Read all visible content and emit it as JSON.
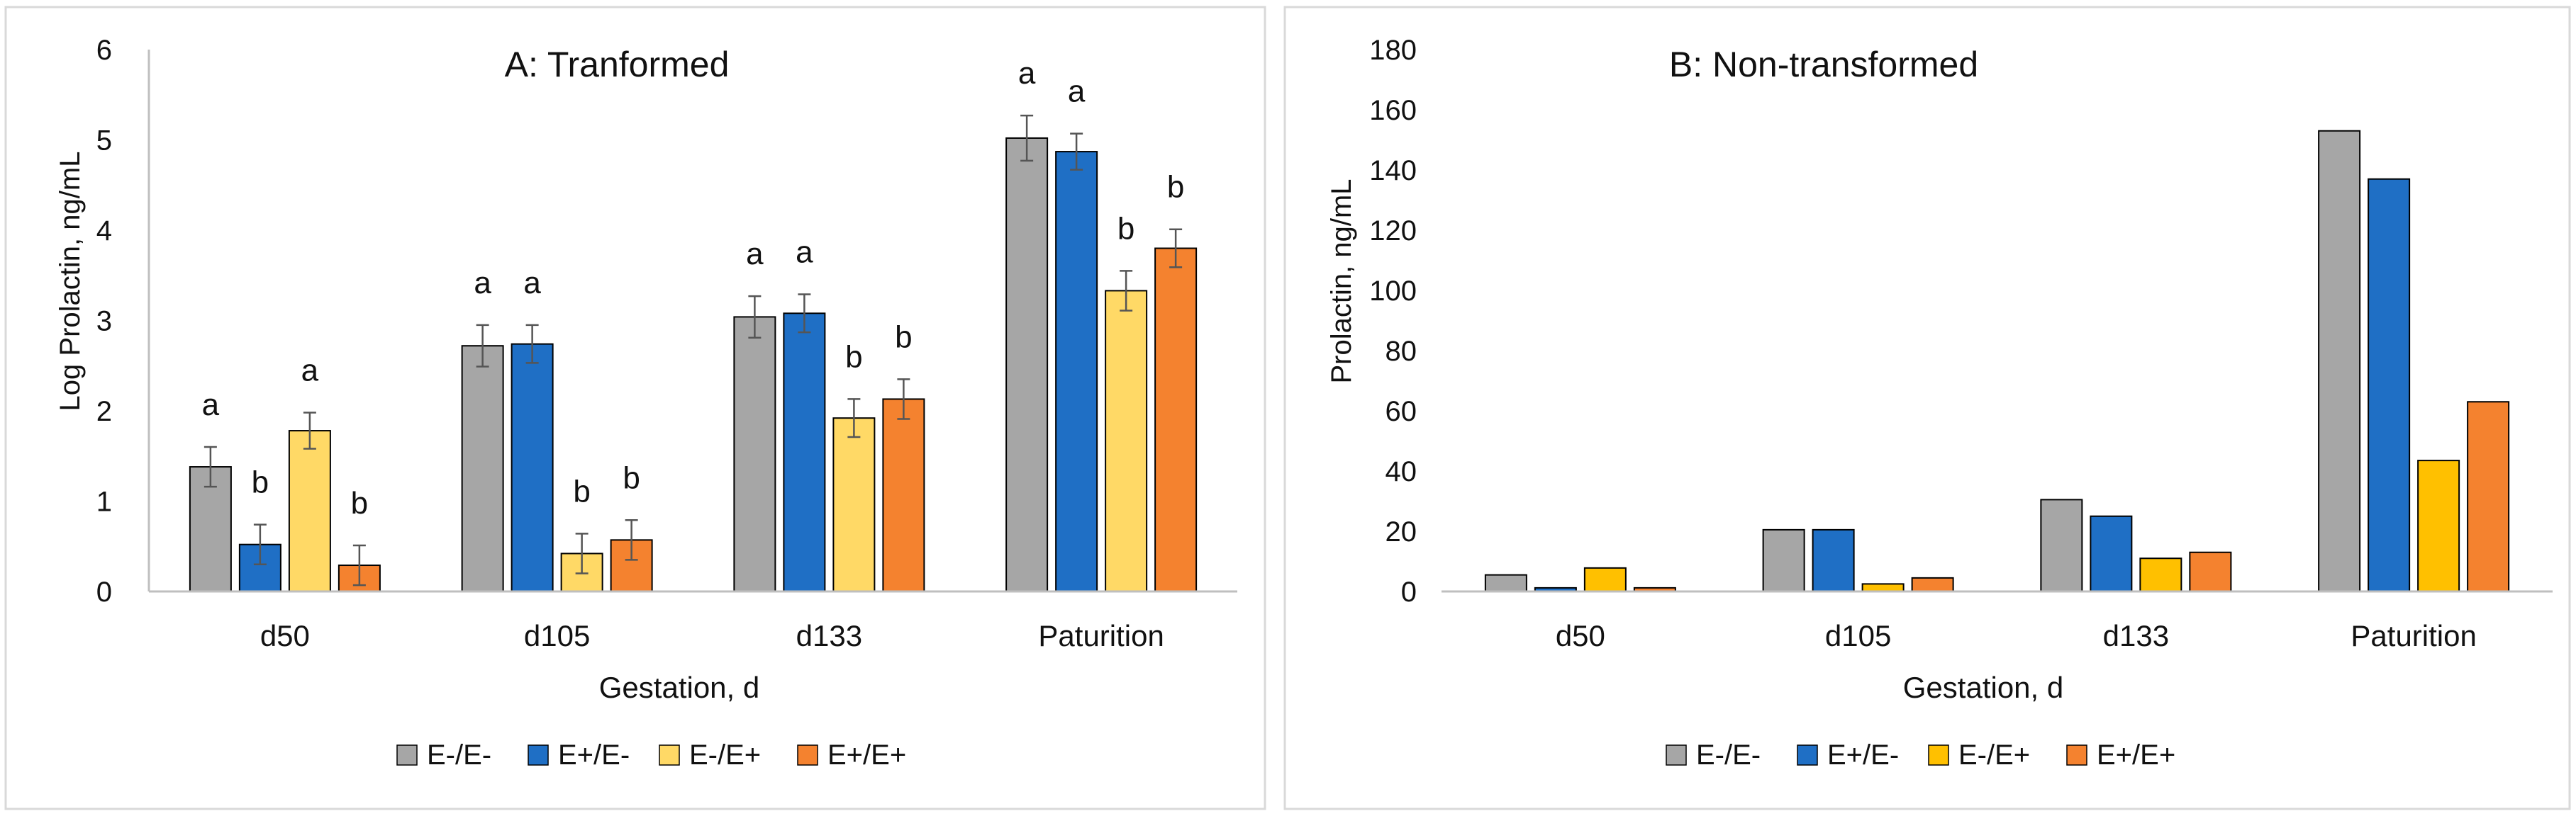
{
  "colors": {
    "E-/E-": "#a6a6a6",
    "E+/E-": "#1f6fc5",
    "E-/E+": "#ffd966",
    "E+/E+": "#f4822f",
    "B_E-/E+": "#ffc000",
    "axis": "#bfbfbf",
    "panel_border": "#d9d9d9",
    "error_bar": "#555555"
  },
  "chart_data": [
    {
      "type": "bar",
      "title": "A: Tranformed",
      "xlabel": "Gestation, d",
      "ylabel": "Log Prolactin, ng/mL",
      "ylim": [
        0,
        6
      ],
      "yticks": [
        "0",
        "1",
        "2",
        "3",
        "4",
        "5",
        "6"
      ],
      "categories": [
        "d50",
        "d105",
        "d133",
        "Paturition"
      ],
      "legend_position": "bottom",
      "series": [
        {
          "name": "E-/E-",
          "values": [
            1.38,
            2.72,
            3.04,
            5.02
          ],
          "errors": [
            0.22,
            0.23,
            0.23,
            0.25
          ],
          "letters": [
            "a",
            "a",
            "a",
            "a"
          ]
        },
        {
          "name": "E+/E-",
          "values": [
            0.52,
            2.74,
            3.08,
            4.87
          ],
          "errors": [
            0.22,
            0.21,
            0.21,
            0.2
          ],
          "letters": [
            "b",
            "a",
            "a",
            "a"
          ]
        },
        {
          "name": "E-/E+",
          "values": [
            1.78,
            0.42,
            1.92,
            3.33
          ],
          "errors": [
            0.2,
            0.22,
            0.21,
            0.22
          ],
          "letters": [
            "a",
            "b",
            "b",
            "b"
          ]
        },
        {
          "name": "E+/E+",
          "values": [
            0.29,
            0.57,
            2.13,
            3.8
          ],
          "errors": [
            0.22,
            0.22,
            0.22,
            0.21
          ],
          "letters": [
            "b",
            "b",
            "b",
            "b"
          ]
        }
      ]
    },
    {
      "type": "bar",
      "title": "B: Non-transformed",
      "xlabel": "Gestation, d",
      "ylabel": "Prolactin, ng/mL",
      "ylim": [
        0,
        180
      ],
      "yticks": [
        "0",
        "20",
        "40",
        "60",
        "80",
        "100",
        "120",
        "140",
        "160",
        "180"
      ],
      "categories": [
        "d50",
        "d105",
        "d133",
        "Paturition"
      ],
      "legend_position": "bottom",
      "series": [
        {
          "name": "E-/E-",
          "values": [
            5.5,
            20.5,
            30.5,
            153
          ]
        },
        {
          "name": "E+/E-",
          "values": [
            1.2,
            20.5,
            25,
            137
          ]
        },
        {
          "name": "E-/E+",
          "values": [
            7.8,
            2.5,
            11,
            43.5
          ]
        },
        {
          "name": "E+/E+",
          "values": [
            1.2,
            4.5,
            13,
            63
          ]
        }
      ]
    }
  ]
}
